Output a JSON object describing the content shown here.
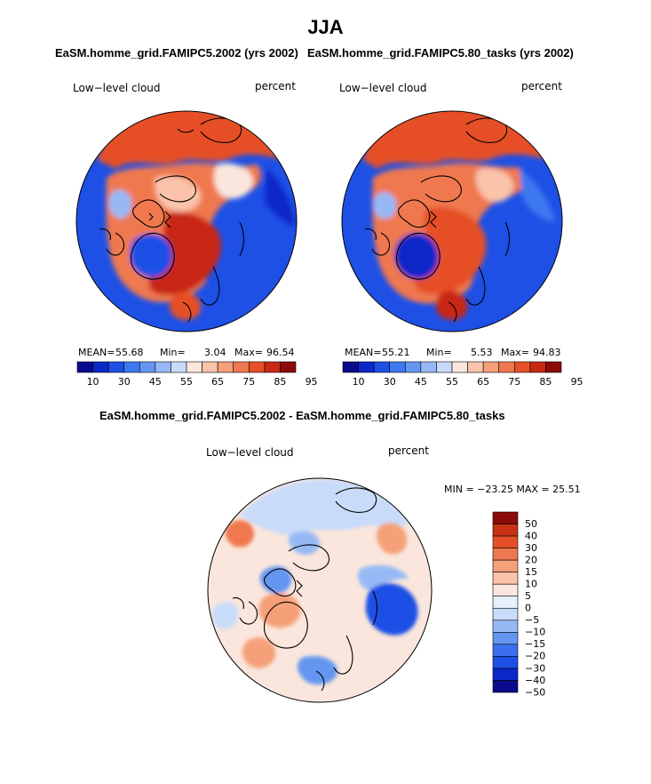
{
  "page": {
    "title": "JJA"
  },
  "colors": {
    "abs_palette": [
      "#0a0a8c",
      "#0a28c8",
      "#1e50e6",
      "#3c78f0",
      "#6496f0",
      "#96b9f5",
      "#c8dcfa",
      "#fae6dc",
      "#fac3aa",
      "#f5a078",
      "#f07850",
      "#e65028",
      "#c82814",
      "#8c0a0a"
    ],
    "diff_palette": [
      "#0a0a8c",
      "#0a28c8",
      "#1e50e6",
      "#3c6ef0",
      "#6496f0",
      "#96b9f5",
      "#c8dcfa",
      "#e6f0fa",
      "#fae6dc",
      "#fac3aa",
      "#f5a078",
      "#f07850",
      "#e65028",
      "#c83214",
      "#8c0a0a"
    ],
    "coast": "#000000"
  },
  "chart_data": [
    {
      "type": "heatmap",
      "title": "EaSM.homme_grid.FAMIPC5.2002 (yrs 2002)",
      "variable": "Low−level cloud",
      "units": "percent",
      "stats": {
        "mean_label": "MEAN=",
        "mean": "55.68",
        "min_label": "Min=",
        "min": "3.04",
        "max_label": "Max=",
        "max": "96.54"
      },
      "colorbar_ticks": [
        "10",
        "30",
        "45",
        "55",
        "65",
        "75",
        "85",
        "95"
      ],
      "colorbar_levels": 14
    },
    {
      "type": "heatmap",
      "title": "EaSM.homme_grid.FAMIPC5.80_tasks (yrs 2002)",
      "variable": "Low−level cloud",
      "units": "percent",
      "stats": {
        "mean_label": "MEAN=",
        "mean": "55.21",
        "min_label": "Min=",
        "min": "5.53",
        "max_label": "Max=",
        "max": "94.83"
      },
      "colorbar_ticks": [
        "10",
        "30",
        "45",
        "55",
        "65",
        "75",
        "85",
        "95"
      ],
      "colorbar_levels": 14
    },
    {
      "type": "heatmap",
      "title": "EaSM.homme_grid.FAMIPC5.2002 - EaSM.homme_grid.FAMIPC5.80_tasks",
      "variable": "Low−level cloud",
      "units": "percent",
      "stats_text": "MIN = −23.25 MAX =  25.51",
      "colorbar_ticks": [
        "50",
        "40",
        "30",
        "20",
        "15",
        "10",
        "5",
        "0",
        "−5",
        "−10",
        "−15",
        "−20",
        "−30",
        "−40",
        "−50"
      ]
    }
  ]
}
